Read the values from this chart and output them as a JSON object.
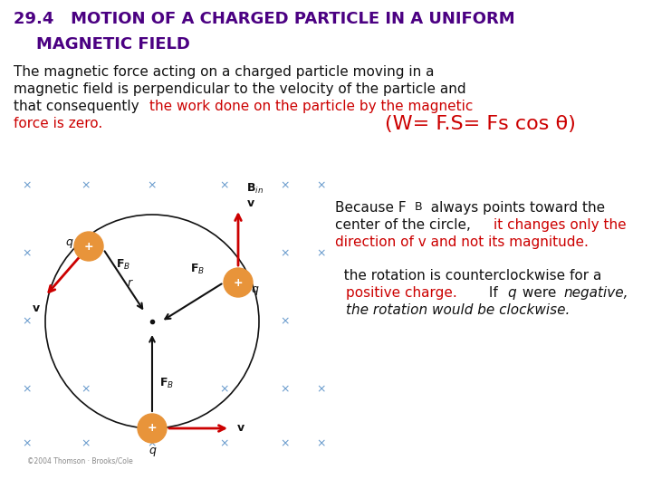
{
  "bg_color": "#ffffff",
  "title_color": "#4B0082",
  "title_fs": 13,
  "body_fs": 11,
  "small_fs": 9,
  "black": "#111111",
  "red": "#cc0000",
  "blue_x": "#6699cc",
  "orange": "#E8943A",
  "fig_w": 7.2,
  "fig_h": 5.4,
  "dpi": 100,
  "title1": "29.4   MOTION OF A CHARGED PARTICLE IN A UNIFORM",
  "title2": "    MAGNETIC FIELD",
  "copyright": "©2004 Thomson · Brooks/Cole"
}
